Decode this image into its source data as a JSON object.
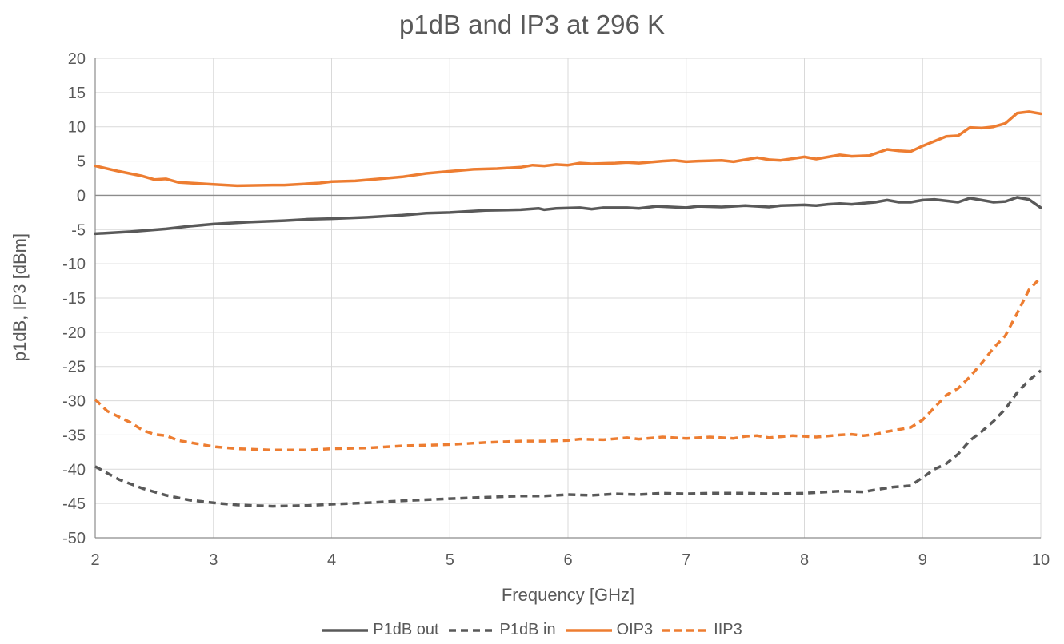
{
  "chart_data": {
    "type": "line",
    "title": "p1dB and IP3 at 296 K",
    "xlabel": "Frequency [GHz]",
    "ylabel": "p1dB, IP3 [dBm]",
    "xlim": [
      2,
      10
    ],
    "ylim": [
      -50,
      20
    ],
    "xticks": [
      "2",
      "3",
      "4",
      "5",
      "6",
      "7",
      "8",
      "9",
      "10"
    ],
    "yticks": [
      "20",
      "15",
      "10",
      "5",
      "0",
      "-5",
      "-10",
      "-15",
      "-20",
      "-25",
      "-30",
      "-35",
      "-40",
      "-45",
      "-50"
    ],
    "grid": true,
    "legend_position": "bottom",
    "series": [
      {
        "name": "P1dB out",
        "color": "#595959",
        "dash": "solid",
        "points": [
          [
            2,
            -5.6
          ],
          [
            2.3,
            -5.3
          ],
          [
            2.6,
            -4.9
          ],
          [
            2.8,
            -4.5
          ],
          [
            3.0,
            -4.2
          ],
          [
            3.3,
            -3.9
          ],
          [
            3.6,
            -3.7
          ],
          [
            3.8,
            -3.5
          ],
          [
            4.0,
            -3.4
          ],
          [
            4.3,
            -3.2
          ],
          [
            4.6,
            -2.9
          ],
          [
            4.8,
            -2.6
          ],
          [
            5.0,
            -2.5
          ],
          [
            5.3,
            -2.2
          ],
          [
            5.6,
            -2.1
          ],
          [
            5.75,
            -1.9
          ],
          [
            5.8,
            -2.1
          ],
          [
            5.9,
            -1.9
          ],
          [
            6.1,
            -1.8
          ],
          [
            6.2,
            -2.0
          ],
          [
            6.3,
            -1.8
          ],
          [
            6.5,
            -1.8
          ],
          [
            6.6,
            -1.9
          ],
          [
            6.75,
            -1.6
          ],
          [
            7.0,
            -1.8
          ],
          [
            7.1,
            -1.6
          ],
          [
            7.3,
            -1.7
          ],
          [
            7.5,
            -1.5
          ],
          [
            7.7,
            -1.7
          ],
          [
            7.8,
            -1.5
          ],
          [
            8.0,
            -1.4
          ],
          [
            8.1,
            -1.5
          ],
          [
            8.2,
            -1.3
          ],
          [
            8.3,
            -1.2
          ],
          [
            8.4,
            -1.3
          ],
          [
            8.6,
            -1.0
          ],
          [
            8.7,
            -0.7
          ],
          [
            8.8,
            -1.0
          ],
          [
            8.9,
            -1.0
          ],
          [
            9.0,
            -0.7
          ],
          [
            9.1,
            -0.6
          ],
          [
            9.3,
            -1.0
          ],
          [
            9.4,
            -0.4
          ],
          [
            9.6,
            -1.0
          ],
          [
            9.7,
            -0.9
          ],
          [
            9.8,
            -0.3
          ],
          [
            9.9,
            -0.6
          ],
          [
            10.0,
            -1.8
          ]
        ]
      },
      {
        "name": "P1dB in",
        "color": "#595959",
        "dash": "dashed",
        "points": [
          [
            2,
            -39.6
          ],
          [
            2.2,
            -41.5
          ],
          [
            2.4,
            -42.8
          ],
          [
            2.6,
            -43.8
          ],
          [
            2.8,
            -44.5
          ],
          [
            3.0,
            -44.9
          ],
          [
            3.2,
            -45.2
          ],
          [
            3.5,
            -45.4
          ],
          [
            3.8,
            -45.3
          ],
          [
            4.0,
            -45.1
          ],
          [
            4.3,
            -44.9
          ],
          [
            4.6,
            -44.6
          ],
          [
            5.0,
            -44.3
          ],
          [
            5.3,
            -44.1
          ],
          [
            5.6,
            -43.9
          ],
          [
            5.8,
            -43.9
          ],
          [
            6.0,
            -43.7
          ],
          [
            6.2,
            -43.8
          ],
          [
            6.4,
            -43.6
          ],
          [
            6.6,
            -43.7
          ],
          [
            6.8,
            -43.5
          ],
          [
            7.0,
            -43.6
          ],
          [
            7.2,
            -43.5
          ],
          [
            7.5,
            -43.5
          ],
          [
            7.7,
            -43.6
          ],
          [
            8.0,
            -43.5
          ],
          [
            8.1,
            -43.4
          ],
          [
            8.3,
            -43.2
          ],
          [
            8.5,
            -43.3
          ],
          [
            8.6,
            -43.0
          ],
          [
            8.75,
            -42.6
          ],
          [
            8.9,
            -42.4
          ],
          [
            9.0,
            -41.2
          ],
          [
            9.1,
            -40.0
          ],
          [
            9.2,
            -39.2
          ],
          [
            9.3,
            -37.8
          ],
          [
            9.4,
            -35.8
          ],
          [
            9.5,
            -34.5
          ],
          [
            9.6,
            -33.0
          ],
          [
            9.7,
            -31.2
          ],
          [
            9.8,
            -28.8
          ],
          [
            9.9,
            -27.0
          ],
          [
            10.0,
            -25.6
          ]
        ]
      },
      {
        "name": "OIP3",
        "color": "#ED7D31",
        "dash": "solid",
        "points": [
          [
            2,
            4.3
          ],
          [
            2.2,
            3.5
          ],
          [
            2.4,
            2.8
          ],
          [
            2.5,
            2.3
          ],
          [
            2.6,
            2.4
          ],
          [
            2.7,
            1.9
          ],
          [
            2.9,
            1.7
          ],
          [
            3.0,
            1.6
          ],
          [
            3.2,
            1.4
          ],
          [
            3.5,
            1.5
          ],
          [
            3.6,
            1.5
          ],
          [
            3.8,
            1.7
          ],
          [
            3.9,
            1.8
          ],
          [
            4.0,
            2.0
          ],
          [
            4.2,
            2.1
          ],
          [
            4.4,
            2.4
          ],
          [
            4.6,
            2.7
          ],
          [
            4.8,
            3.2
          ],
          [
            5.0,
            3.5
          ],
          [
            5.2,
            3.8
          ],
          [
            5.4,
            3.9
          ],
          [
            5.6,
            4.1
          ],
          [
            5.7,
            4.4
          ],
          [
            5.8,
            4.3
          ],
          [
            5.9,
            4.5
          ],
          [
            6.0,
            4.4
          ],
          [
            6.1,
            4.7
          ],
          [
            6.2,
            4.6
          ],
          [
            6.4,
            4.7
          ],
          [
            6.5,
            4.8
          ],
          [
            6.6,
            4.7
          ],
          [
            6.8,
            5.0
          ],
          [
            6.9,
            5.1
          ],
          [
            7.0,
            4.9
          ],
          [
            7.1,
            5.0
          ],
          [
            7.3,
            5.1
          ],
          [
            7.4,
            4.9
          ],
          [
            7.6,
            5.5
          ],
          [
            7.7,
            5.2
          ],
          [
            7.8,
            5.1
          ],
          [
            8.0,
            5.6
          ],
          [
            8.1,
            5.3
          ],
          [
            8.3,
            5.9
          ],
          [
            8.4,
            5.7
          ],
          [
            8.55,
            5.8
          ],
          [
            8.7,
            6.7
          ],
          [
            8.8,
            6.5
          ],
          [
            8.9,
            6.4
          ],
          [
            9.0,
            7.2
          ],
          [
            9.2,
            8.6
          ],
          [
            9.3,
            8.7
          ],
          [
            9.4,
            9.9
          ],
          [
            9.5,
            9.8
          ],
          [
            9.6,
            10.0
          ],
          [
            9.7,
            10.5
          ],
          [
            9.8,
            12.0
          ],
          [
            9.9,
            12.2
          ],
          [
            10.0,
            11.9
          ]
        ]
      },
      {
        "name": "IIP3",
        "color": "#ED7D31",
        "dash": "dashed",
        "points": [
          [
            2,
            -29.8
          ],
          [
            2.1,
            -31.5
          ],
          [
            2.3,
            -33.2
          ],
          [
            2.4,
            -34.3
          ],
          [
            2.5,
            -34.9
          ],
          [
            2.6,
            -35.1
          ],
          [
            2.7,
            -35.8
          ],
          [
            2.9,
            -36.4
          ],
          [
            3.0,
            -36.7
          ],
          [
            3.2,
            -37.0
          ],
          [
            3.5,
            -37.2
          ],
          [
            3.8,
            -37.2
          ],
          [
            4.0,
            -37.0
          ],
          [
            4.3,
            -36.9
          ],
          [
            4.6,
            -36.6
          ],
          [
            5.0,
            -36.4
          ],
          [
            5.3,
            -36.1
          ],
          [
            5.6,
            -35.9
          ],
          [
            5.8,
            -35.9
          ],
          [
            6.0,
            -35.8
          ],
          [
            6.1,
            -35.6
          ],
          [
            6.3,
            -35.7
          ],
          [
            6.5,
            -35.4
          ],
          [
            6.6,
            -35.6
          ],
          [
            6.8,
            -35.3
          ],
          [
            7.0,
            -35.5
          ],
          [
            7.2,
            -35.3
          ],
          [
            7.4,
            -35.5
          ],
          [
            7.5,
            -35.2
          ],
          [
            7.6,
            -35.1
          ],
          [
            7.7,
            -35.4
          ],
          [
            7.9,
            -35.1
          ],
          [
            8.0,
            -35.2
          ],
          [
            8.1,
            -35.3
          ],
          [
            8.3,
            -35.0
          ],
          [
            8.4,
            -34.9
          ],
          [
            8.5,
            -35.1
          ],
          [
            8.6,
            -34.9
          ],
          [
            8.7,
            -34.5
          ],
          [
            8.8,
            -34.2
          ],
          [
            8.9,
            -33.9
          ],
          [
            9.0,
            -32.8
          ],
          [
            9.1,
            -31.0
          ],
          [
            9.2,
            -29.2
          ],
          [
            9.3,
            -28.2
          ],
          [
            9.4,
            -26.5
          ],
          [
            9.5,
            -24.5
          ],
          [
            9.6,
            -22.3
          ],
          [
            9.7,
            -20.5
          ],
          [
            9.8,
            -17.2
          ],
          [
            9.9,
            -13.8
          ],
          [
            10.0,
            -12.0
          ]
        ]
      }
    ]
  }
}
